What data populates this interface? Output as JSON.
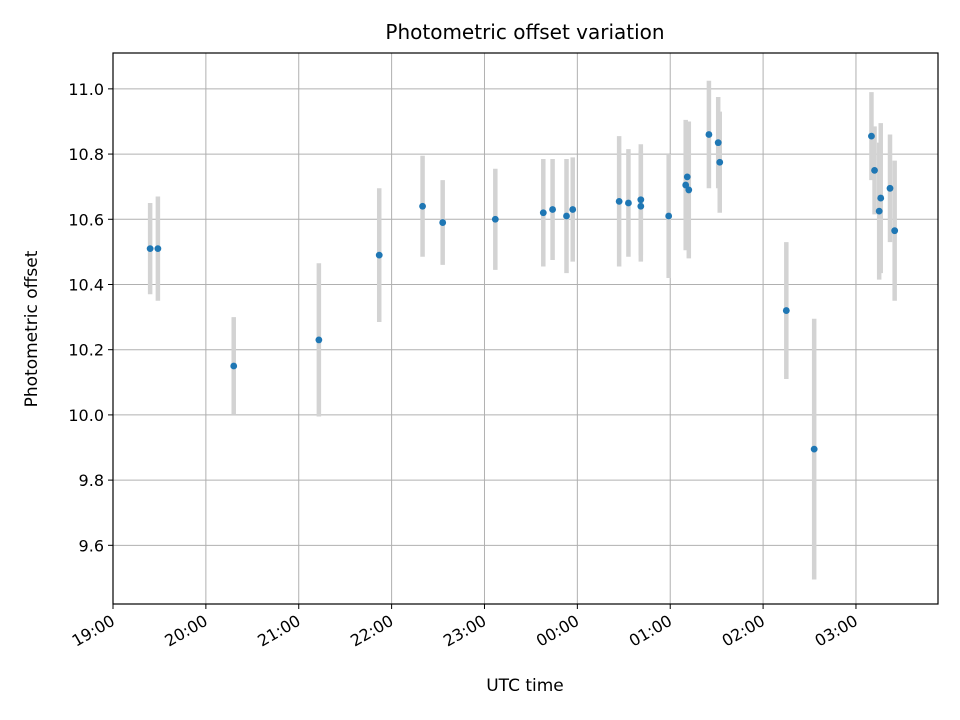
{
  "chart_data": {
    "type": "scatter",
    "title": "Photometric offset variation",
    "xlabel": "UTC time",
    "ylabel": "Photometric offset",
    "x_tick_labels": [
      "19:00",
      "20:00",
      "21:00",
      "22:00",
      "23:00",
      "00:00",
      "01:00",
      "02:00",
      "03:00"
    ],
    "y_tick_labels": [
      "9.6",
      "9.8",
      "10.0",
      "10.2",
      "10.4",
      "10.6",
      "10.8",
      "11.0"
    ],
    "xlim": [
      "19:00",
      "03:53"
    ],
    "ylim": [
      9.42,
      11.11
    ],
    "grid": true,
    "marker_color": "#1f77b4",
    "errorbar_color": "#d3d3d3",
    "points": [
      {
        "t": "19:24",
        "y": 10.51,
        "err": 0.14
      },
      {
        "t": "19:29",
        "y": 10.51,
        "err": 0.16
      },
      {
        "t": "20:18",
        "y": 10.15,
        "err": 0.15
      },
      {
        "t": "21:13",
        "y": 10.23,
        "err": 0.235
      },
      {
        "t": "21:52",
        "y": 10.49,
        "err": 0.205
      },
      {
        "t": "22:20",
        "y": 10.64,
        "err": 0.155
      },
      {
        "t": "22:33",
        "y": 10.59,
        "err": 0.13
      },
      {
        "t": "23:07",
        "y": 10.6,
        "err": 0.155
      },
      {
        "t": "23:38",
        "y": 10.62,
        "err": 0.165
      },
      {
        "t": "23:44",
        "y": 10.63,
        "err": 0.155
      },
      {
        "t": "23:53",
        "y": 10.61,
        "err": 0.175
      },
      {
        "t": "23:57",
        "y": 10.63,
        "err": 0.16
      },
      {
        "t": "00:27",
        "y": 10.655,
        "err": 0.2
      },
      {
        "t": "00:33",
        "y": 10.65,
        "err": 0.165
      },
      {
        "t": "00:41",
        "y": 10.64,
        "err": 0.17
      },
      {
        "t": "00:41",
        "y": 10.66,
        "err": 0.17
      },
      {
        "t": "00:59",
        "y": 10.61,
        "err": 0.19
      },
      {
        "t": "01:10",
        "y": 10.705,
        "err": 0.2
      },
      {
        "t": "01:11",
        "y": 10.73,
        "err": 0.17
      },
      {
        "t": "01:12",
        "y": 10.69,
        "err": 0.21
      },
      {
        "t": "01:25",
        "y": 10.86,
        "err": 0.165
      },
      {
        "t": "01:31",
        "y": 10.835,
        "err": 0.14
      },
      {
        "t": "01:32",
        "y": 10.775,
        "err": 0.155
      },
      {
        "t": "02:15",
        "y": 10.32,
        "err": 0.21
      },
      {
        "t": "02:33",
        "y": 9.895,
        "err": 0.4
      },
      {
        "t": "03:10",
        "y": 10.855,
        "err": 0.135
      },
      {
        "t": "03:12",
        "y": 10.75,
        "err": 0.135
      },
      {
        "t": "03:15",
        "y": 10.625,
        "err": 0.21
      },
      {
        "t": "03:16",
        "y": 10.665,
        "err": 0.23
      },
      {
        "t": "03:22",
        "y": 10.695,
        "err": 0.165
      },
      {
        "t": "03:25",
        "y": 10.565,
        "err": 0.215
      }
    ]
  }
}
